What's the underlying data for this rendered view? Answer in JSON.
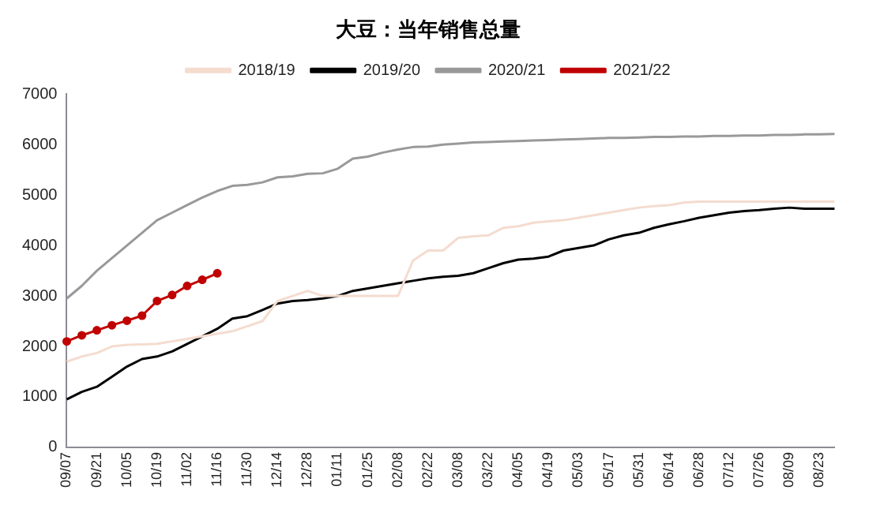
{
  "chart_data": {
    "type": "line",
    "title": "大豆：当年销售总量",
    "categories": [
      "09/07",
      null,
      "09/21",
      null,
      "10/05",
      null,
      "10/19",
      null,
      "11/02",
      null,
      "11/16",
      null,
      "11/30",
      null,
      "12/14",
      null,
      "12/28",
      null,
      "01/11",
      null,
      "01/25",
      null,
      "02/08",
      null,
      "02/22",
      null,
      "03/08",
      null,
      "03/22",
      null,
      "04/05",
      null,
      "04/19",
      null,
      "05/03",
      null,
      "05/17",
      null,
      "05/31",
      null,
      "06/14",
      null,
      "06/28",
      null,
      "07/12",
      null,
      "07/26",
      null,
      "08/09",
      null,
      "08/23",
      null
    ],
    "series": [
      {
        "name": "2018/19",
        "color": "#f4dccf",
        "marker": "none",
        "values": [
          1700,
          1800,
          1870,
          2000,
          2030,
          2040,
          2050,
          2100,
          2150,
          2200,
          2250,
          2300,
          2400,
          2500,
          2900,
          3000,
          3100,
          3000,
          3000,
          3000,
          3000,
          3000,
          3000,
          3700,
          3900,
          3900,
          4150,
          4180,
          4200,
          4350,
          4380,
          4450,
          4480,
          4500,
          4550,
          4600,
          4650,
          4700,
          4750,
          4780,
          4800,
          4850,
          4870,
          4870,
          4870,
          4870,
          4870,
          4870,
          4870,
          4870,
          4870,
          4870
        ]
      },
      {
        "name": "2019/20",
        "color": "#000000",
        "marker": "none",
        "values": [
          950,
          1100,
          1200,
          1400,
          1600,
          1750,
          1800,
          1900,
          2050,
          2200,
          2350,
          2550,
          2600,
          2720,
          2850,
          2900,
          2920,
          2950,
          3000,
          3100,
          3150,
          3200,
          3250,
          3300,
          3350,
          3380,
          3400,
          3450,
          3550,
          3650,
          3720,
          3740,
          3780,
          3900,
          3950,
          4000,
          4120,
          4200,
          4250,
          4350,
          4420,
          4480,
          4550,
          4600,
          4650,
          4680,
          4700,
          4730,
          4750,
          4730,
          4730,
          4730
        ]
      },
      {
        "name": "2020/21",
        "color": "#999999",
        "marker": "none",
        "values": [
          2950,
          3200,
          3500,
          3750,
          4000,
          4250,
          4500,
          4650,
          4800,
          4950,
          5080,
          5180,
          5200,
          5250,
          5350,
          5370,
          5420,
          5430,
          5520,
          5720,
          5760,
          5840,
          5900,
          5950,
          5960,
          6000,
          6020,
          6040,
          6050,
          6060,
          6070,
          6080,
          6090,
          6100,
          6110,
          6120,
          6130,
          6130,
          6140,
          6150,
          6150,
          6160,
          6160,
          6170,
          6170,
          6180,
          6180,
          6190,
          6190,
          6200,
          6200,
          6210
        ]
      },
      {
        "name": "2021/22",
        "color": "#c00000",
        "marker": "circle",
        "values": [
          2100,
          2220,
          2320,
          2420,
          2510,
          2610,
          2900,
          3020,
          3200,
          3320,
          3450,
          null,
          null,
          null,
          null,
          null,
          null,
          null,
          null,
          null,
          null,
          null,
          null,
          null,
          null,
          null,
          null,
          null,
          null,
          null,
          null,
          null,
          null,
          null,
          null,
          null,
          null,
          null,
          null,
          null,
          null,
          null,
          null,
          null,
          null,
          null,
          null,
          null,
          null,
          null,
          null,
          null
        ]
      }
    ],
    "ylim": [
      0,
      7000
    ],
    "yticks": [
      0,
      1000,
      2000,
      3000,
      4000,
      5000,
      6000,
      7000
    ],
    "grid": false,
    "legend": "top"
  }
}
